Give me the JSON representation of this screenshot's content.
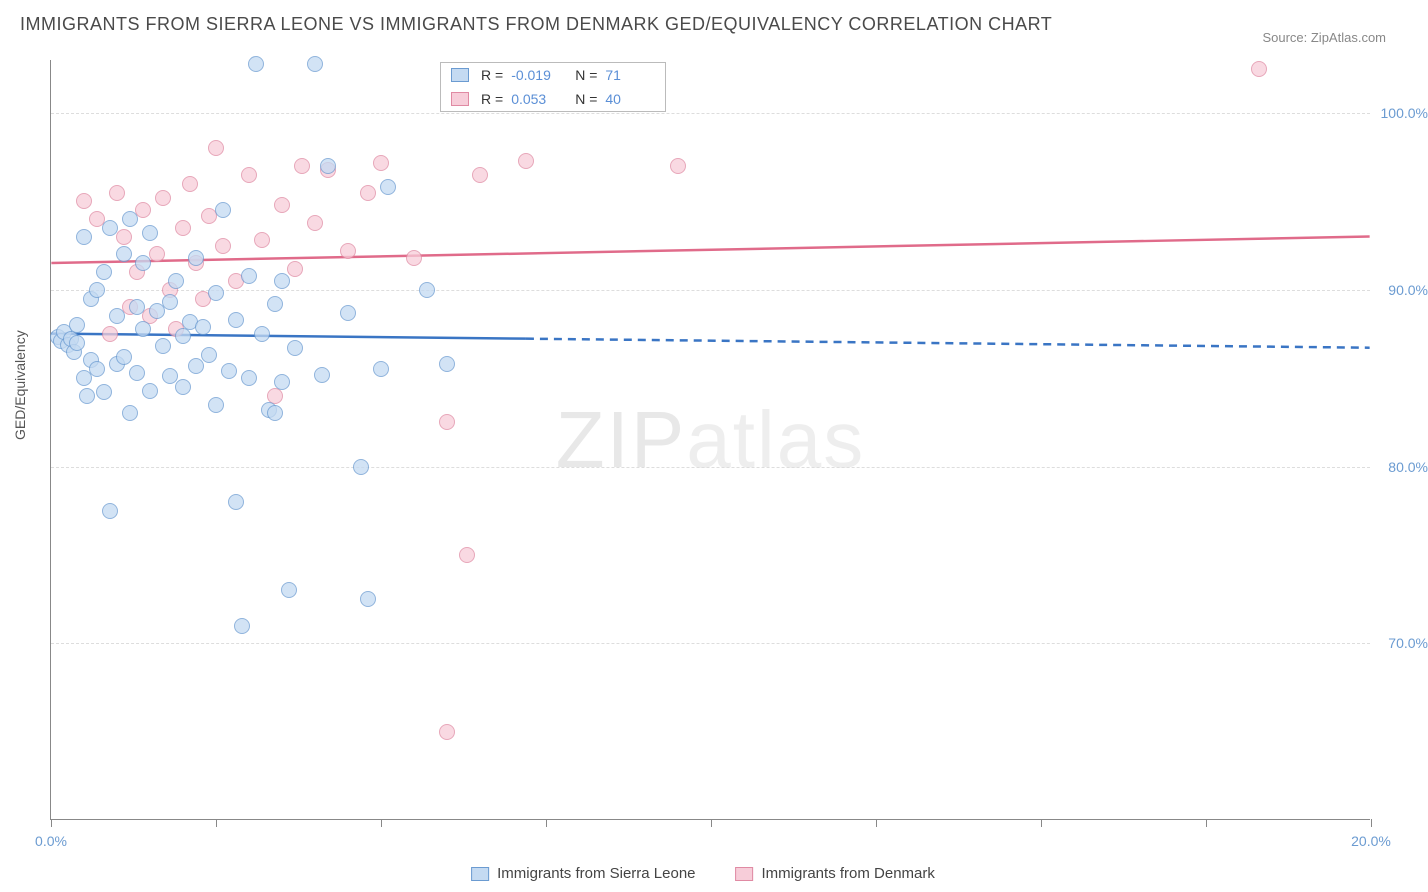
{
  "title": "IMMIGRANTS FROM SIERRA LEONE VS IMMIGRANTS FROM DENMARK GED/EQUIVALENCY CORRELATION CHART",
  "source": "Source: ZipAtlas.com",
  "ylabel": "GED/Equivalency",
  "watermark_a": "ZIP",
  "watermark_b": "atlas",
  "chart": {
    "type": "scatter+trend",
    "x_range": [
      0,
      20
    ],
    "y_range": [
      60,
      103
    ],
    "y_ticks": [
      70,
      80,
      90,
      100
    ],
    "y_tick_labels": [
      "70.0%",
      "80.0%",
      "90.0%",
      "100.0%"
    ],
    "x_ticks": [
      0,
      2.5,
      5,
      7.5,
      10,
      12.5,
      15,
      17.5,
      20
    ],
    "x_tick_labels": {
      "0": "0.0%",
      "20": "20.0%"
    },
    "background": "#ffffff",
    "grid_color": "#dddddd",
    "axis_color": "#888888"
  },
  "series": {
    "sierra_leone": {
      "label": "Immigrants from Sierra Leone",
      "fill": "#c4daf2",
      "stroke": "#6b9bd1",
      "line_color": "#3a75c4",
      "opacity": 0.75,
      "r": -0.019,
      "n": 71,
      "trend": {
        "x1": 0,
        "y1": 87.5,
        "x2": 20,
        "y2": 86.7,
        "solid_until_x": 7.2
      },
      "points": [
        [
          0.1,
          87.3
        ],
        [
          0.15,
          87.1
        ],
        [
          0.2,
          87.6
        ],
        [
          0.25,
          86.9
        ],
        [
          0.3,
          87.2
        ],
        [
          0.35,
          86.5
        ],
        [
          0.4,
          87.0
        ],
        [
          0.4,
          88.0
        ],
        [
          0.5,
          85.0
        ],
        [
          0.5,
          93.0
        ],
        [
          0.55,
          84.0
        ],
        [
          0.6,
          86.0
        ],
        [
          0.6,
          89.5
        ],
        [
          0.7,
          90.0
        ],
        [
          0.7,
          85.5
        ],
        [
          0.8,
          91.0
        ],
        [
          0.8,
          84.2
        ],
        [
          0.9,
          93.5
        ],
        [
          0.9,
          77.5
        ],
        [
          1.0,
          88.5
        ],
        [
          1.0,
          85.8
        ],
        [
          1.1,
          92.0
        ],
        [
          1.1,
          86.2
        ],
        [
          1.2,
          94.0
        ],
        [
          1.2,
          83.0
        ],
        [
          1.3,
          89.0
        ],
        [
          1.3,
          85.3
        ],
        [
          1.4,
          91.5
        ],
        [
          1.4,
          87.8
        ],
        [
          1.5,
          93.2
        ],
        [
          1.5,
          84.3
        ],
        [
          1.6,
          88.8
        ],
        [
          1.7,
          86.8
        ],
        [
          1.8,
          89.3
        ],
        [
          1.8,
          85.1
        ],
        [
          1.9,
          90.5
        ],
        [
          2.0,
          87.4
        ],
        [
          2.0,
          84.5
        ],
        [
          2.1,
          88.2
        ],
        [
          2.2,
          91.8
        ],
        [
          2.2,
          85.7
        ],
        [
          2.3,
          87.9
        ],
        [
          2.4,
          86.3
        ],
        [
          2.5,
          89.8
        ],
        [
          2.5,
          83.5
        ],
        [
          2.6,
          94.5
        ],
        [
          2.7,
          85.4
        ],
        [
          2.8,
          88.3
        ],
        [
          2.9,
          71.0
        ],
        [
          3.0,
          90.8
        ],
        [
          3.0,
          85.0
        ],
        [
          3.1,
          102.8
        ],
        [
          3.2,
          87.5
        ],
        [
          3.3,
          83.2
        ],
        [
          3.4,
          83.0
        ],
        [
          3.4,
          89.2
        ],
        [
          3.5,
          84.8
        ],
        [
          3.6,
          73.0
        ],
        [
          3.7,
          86.7
        ],
        [
          4.0,
          102.8
        ],
        [
          4.1,
          85.2
        ],
        [
          4.2,
          97.0
        ],
        [
          4.5,
          88.7
        ],
        [
          4.7,
          80.0
        ],
        [
          4.8,
          72.5
        ],
        [
          5.0,
          85.5
        ],
        [
          5.1,
          95.8
        ],
        [
          5.7,
          90.0
        ],
        [
          6.0,
          85.8
        ],
        [
          3.5,
          90.5
        ],
        [
          2.8,
          78.0
        ]
      ]
    },
    "denmark": {
      "label": "Immigrants from Denmark",
      "fill": "#f7cdd9",
      "stroke": "#e08aa3",
      "line_color": "#e06b8a",
      "opacity": 0.75,
      "r": 0.053,
      "n": 40,
      "trend": {
        "x1": 0,
        "y1": 91.5,
        "x2": 20,
        "y2": 93.0,
        "solid_until_x": 20
      },
      "points": [
        [
          0.5,
          95.0
        ],
        [
          0.7,
          94.0
        ],
        [
          0.9,
          87.5
        ],
        [
          1.0,
          95.5
        ],
        [
          1.1,
          93.0
        ],
        [
          1.2,
          89.0
        ],
        [
          1.3,
          91.0
        ],
        [
          1.4,
          94.5
        ],
        [
          1.5,
          88.5
        ],
        [
          1.6,
          92.0
        ],
        [
          1.7,
          95.2
        ],
        [
          1.8,
          90.0
        ],
        [
          1.9,
          87.8
        ],
        [
          2.0,
          93.5
        ],
        [
          2.1,
          96.0
        ],
        [
          2.2,
          91.5
        ],
        [
          2.3,
          89.5
        ],
        [
          2.4,
          94.2
        ],
        [
          2.5,
          98.0
        ],
        [
          2.6,
          92.5
        ],
        [
          2.8,
          90.5
        ],
        [
          3.0,
          96.5
        ],
        [
          3.2,
          92.8
        ],
        [
          3.4,
          84.0
        ],
        [
          3.5,
          94.8
        ],
        [
          3.7,
          91.2
        ],
        [
          3.8,
          97.0
        ],
        [
          4.0,
          93.8
        ],
        [
          4.2,
          96.8
        ],
        [
          4.5,
          92.2
        ],
        [
          4.8,
          95.5
        ],
        [
          5.0,
          97.2
        ],
        [
          5.5,
          91.8
        ],
        [
          6.0,
          82.5
        ],
        [
          6.3,
          75.0
        ],
        [
          6.5,
          96.5
        ],
        [
          7.2,
          97.3
        ],
        [
          9.5,
          97.0
        ],
        [
          6.0,
          65.0
        ],
        [
          18.3,
          102.5
        ]
      ]
    }
  },
  "legend_top": [
    {
      "series": "sierra_leone",
      "r_label": "R =",
      "r_val": "-0.019",
      "n_label": "N =",
      "n_val": "71"
    },
    {
      "series": "denmark",
      "r_label": "R =",
      "r_val": "0.053",
      "n_label": "N =",
      "n_val": "40"
    }
  ]
}
